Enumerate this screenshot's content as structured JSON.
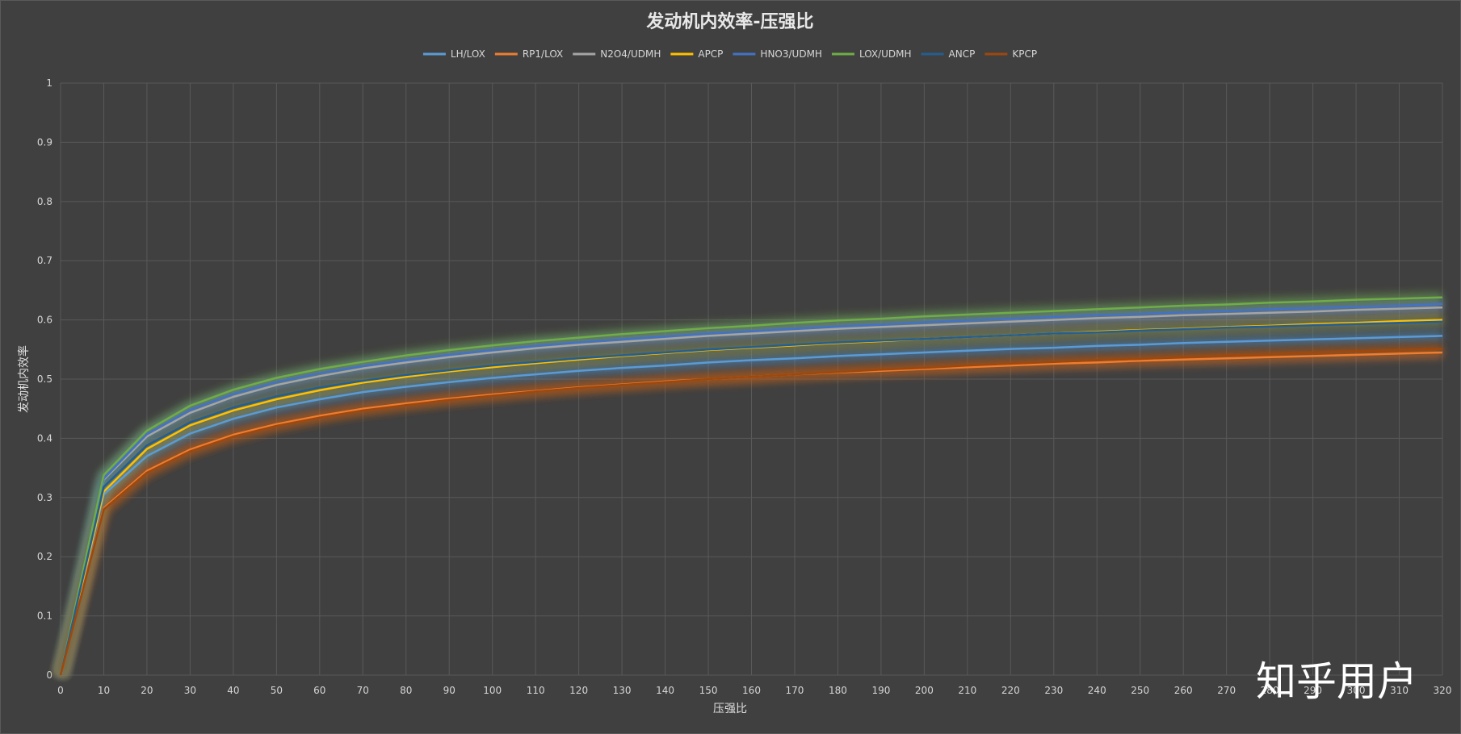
{
  "watermark": "知乎用户",
  "chart_data": {
    "type": "line",
    "title": "发动机内效率-压强比",
    "xlabel": "压强比",
    "ylabel": "发动机内效率",
    "xlim": [
      0,
      320
    ],
    "ylim": [
      0,
      1
    ],
    "x_ticks": [
      "0",
      "10",
      "20",
      "30",
      "40",
      "50",
      "60",
      "70",
      "80",
      "90",
      "100",
      "110",
      "120",
      "130",
      "140",
      "150",
      "160",
      "170",
      "180",
      "190",
      "200",
      "210",
      "220",
      "230",
      "240",
      "250",
      "260",
      "270",
      "280",
      "290",
      "300",
      "310",
      "320"
    ],
    "y_ticks": [
      "0",
      "0.1",
      "0.2",
      "0.3",
      "0.4",
      "0.5",
      "0.6",
      "0.7",
      "0.8",
      "0.9",
      "1"
    ],
    "grid": true,
    "legend_position": "top",
    "background": "#404040",
    "x": [
      0,
      10,
      20,
      30,
      40,
      50,
      60,
      70,
      80,
      90,
      100,
      110,
      120,
      130,
      140,
      150,
      160,
      170,
      180,
      190,
      200,
      210,
      220,
      230,
      240,
      250,
      260,
      270,
      280,
      290,
      300,
      310,
      320
    ],
    "series": [
      {
        "name": "LH/LOX",
        "color": "#5b9bd5",
        "values": [
          0,
          0.305,
          0.37,
          0.408,
          0.433,
          0.452,
          0.466,
          0.478,
          0.487,
          0.495,
          0.502,
          0.508,
          0.514,
          0.519,
          0.523,
          0.528,
          0.532,
          0.535,
          0.539,
          0.542,
          0.545,
          0.548,
          0.551,
          0.553,
          0.556,
          0.558,
          0.561,
          0.563,
          0.565,
          0.567,
          0.569,
          0.571,
          0.573
        ]
      },
      {
        "name": "RP1/LOX",
        "color": "#ed7d31",
        "values": [
          0,
          0.282,
          0.345,
          0.381,
          0.406,
          0.424,
          0.438,
          0.45,
          0.459,
          0.467,
          0.474,
          0.48,
          0.486,
          0.491,
          0.496,
          0.5,
          0.504,
          0.508,
          0.511,
          0.514,
          0.517,
          0.52,
          0.523,
          0.526,
          0.528,
          0.531,
          0.533,
          0.535,
          0.537,
          0.539,
          0.541,
          0.543,
          0.545
        ]
      },
      {
        "name": "N2O4/UDMH",
        "color": "#a5a5a5",
        "values": [
          0,
          0.33,
          0.403,
          0.443,
          0.47,
          0.49,
          0.505,
          0.518,
          0.528,
          0.537,
          0.545,
          0.552,
          0.558,
          0.563,
          0.568,
          0.573,
          0.577,
          0.581,
          0.585,
          0.588,
          0.591,
          0.594,
          0.597,
          0.6,
          0.603,
          0.605,
          0.608,
          0.61,
          0.612,
          0.614,
          0.617,
          0.619,
          0.621
        ]
      },
      {
        "name": "APCP",
        "color": "#ffc000",
        "values": [
          0,
          0.31,
          0.382,
          0.422,
          0.447,
          0.466,
          0.481,
          0.494,
          0.504,
          0.513,
          0.52,
          0.527,
          0.533,
          0.539,
          0.544,
          0.549,
          0.553,
          0.557,
          0.561,
          0.564,
          0.568,
          0.571,
          0.574,
          0.577,
          0.58,
          0.583,
          0.585,
          0.588,
          0.59,
          0.593,
          0.595,
          0.598,
          0.6
        ]
      },
      {
        "name": "HNO3/UDMH",
        "color": "#4472c4",
        "values": [
          0,
          0.332,
          0.407,
          0.448,
          0.475,
          0.495,
          0.51,
          0.522,
          0.532,
          0.541,
          0.549,
          0.556,
          0.562,
          0.567,
          0.572,
          0.577,
          0.581,
          0.585,
          0.589,
          0.592,
          0.596,
          0.599,
          0.602,
          0.605,
          0.608,
          0.61,
          0.613,
          0.615,
          0.618,
          0.62,
          0.622,
          0.624,
          0.627
        ]
      },
      {
        "name": "LOX/UDMH",
        "color": "#70ad47",
        "values": [
          0,
          0.338,
          0.413,
          0.455,
          0.482,
          0.502,
          0.517,
          0.529,
          0.54,
          0.549,
          0.557,
          0.564,
          0.57,
          0.576,
          0.581,
          0.586,
          0.59,
          0.595,
          0.599,
          0.602,
          0.606,
          0.609,
          0.612,
          0.615,
          0.618,
          0.621,
          0.624,
          0.626,
          0.629,
          0.631,
          0.634,
          0.636,
          0.638
        ]
      },
      {
        "name": "ANCP",
        "color": "#255e91",
        "values": [
          0,
          0.318,
          0.388,
          0.427,
          0.452,
          0.471,
          0.486,
          0.497,
          0.507,
          0.515,
          0.523,
          0.529,
          0.535,
          0.54,
          0.545,
          0.55,
          0.554,
          0.558,
          0.562,
          0.565,
          0.568,
          0.571,
          0.574,
          0.577,
          0.579,
          0.582,
          0.584,
          0.587,
          0.589,
          0.591,
          0.593,
          0.595,
          0.597
        ]
      },
      {
        "name": "KPCP",
        "color": "#9e480e",
        "values": [
          0,
          0.28,
          0.342,
          0.378,
          0.403,
          0.421,
          0.435,
          0.447,
          0.456,
          0.465,
          0.472,
          0.479,
          0.485,
          0.49,
          0.495,
          0.5,
          0.504,
          0.508,
          0.512,
          0.516,
          0.519,
          0.523,
          0.526,
          0.529,
          0.532,
          0.534,
          0.537,
          0.54,
          0.542,
          0.545,
          0.547,
          0.549,
          0.551
        ]
      }
    ]
  }
}
